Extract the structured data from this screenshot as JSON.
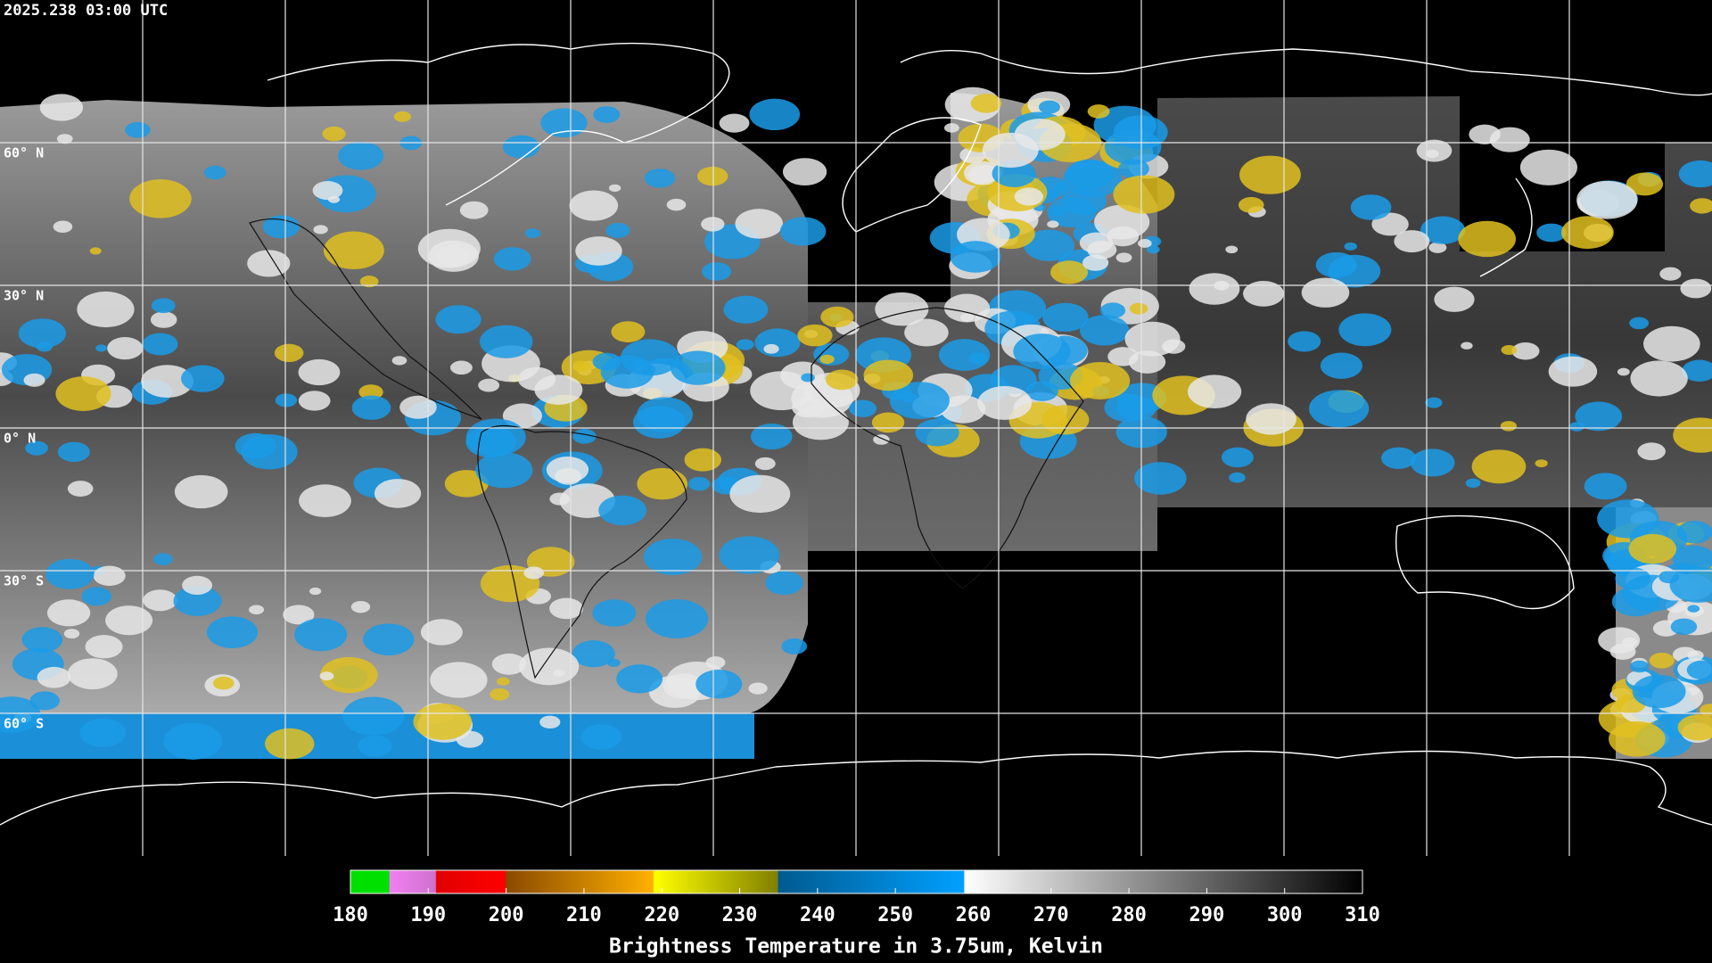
{
  "timestamp": "2025.238 03:00 UTC",
  "lat_labels": [
    "60° N",
    "30° N",
    "0° N",
    "30° S",
    "60° S"
  ],
  "colorbar": {
    "title": "Brightness Temperature in 3.75um, Kelvin",
    "range": [
      180,
      310
    ],
    "ticks": [
      180,
      190,
      200,
      210,
      220,
      230,
      240,
      250,
      260,
      270,
      280,
      290,
      300,
      310
    ]
  }
}
